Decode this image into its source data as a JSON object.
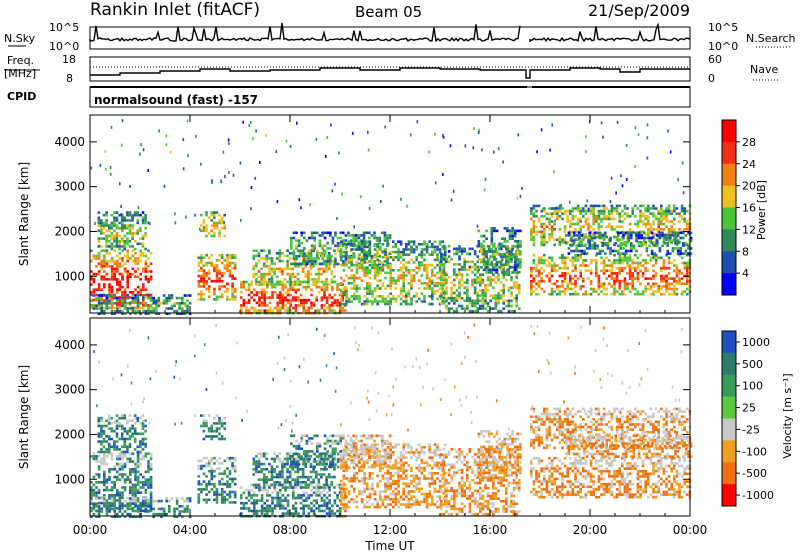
{
  "header": {
    "station": "Rankin Inlet (fitACF)",
    "beam": "Beam 05",
    "date": "21/Sep/2009"
  },
  "strips": {
    "nsky": {
      "label": "N.Sky",
      "ticks": [
        "10^5",
        "10^0"
      ]
    },
    "nsearch": {
      "label": "N.Search"
    },
    "freq": {
      "label_top": "Freq.",
      "label_bottom": "[MHz]",
      "ticks": [
        "18",
        "8"
      ]
    },
    "nave": {
      "label": "Nave",
      "ticks": [
        "60",
        "0"
      ]
    },
    "cpid": {
      "label": "CPID",
      "value": "normalsound (fast) -157"
    }
  },
  "chart_data": [
    {
      "type": "heatmap",
      "quantity": "power",
      "ylabel": "Slant Range [km]",
      "ylim": [
        180,
        4600
      ],
      "yticks": [
        "1000",
        "2000",
        "3000",
        "4000"
      ],
      "colorbar_label": "Power [dB]",
      "colorbar_ticks": [
        "4",
        "8",
        "12",
        "16",
        "20",
        "24",
        "28"
      ],
      "colorscale": [
        "#0000ff",
        "#1f4fae",
        "#2f8a5a",
        "#4cc43a",
        "#f0c020",
        "#f08010",
        "#f03010",
        "#ff0000"
      ]
    },
    {
      "type": "heatmap",
      "quantity": "velocity",
      "ylabel": "Slant Range [km]",
      "ylim": [
        180,
        4600
      ],
      "yticks": [
        "1000",
        "2000",
        "3000",
        "4000"
      ],
      "colorbar_label": "Velocity [m s⁻¹]",
      "colorbar_ticks": [
        "1000",
        "500",
        "100",
        "25",
        "-25",
        "-100",
        "-500",
        "-1000"
      ],
      "colorscale": [
        "#2050c0",
        "#2a7b6a",
        "#3a9a5a",
        "#5ac840",
        "#c8c8c8",
        "#f0a020",
        "#f07010",
        "#ff0000"
      ]
    }
  ],
  "xaxis": {
    "label": "Time UT",
    "ticks": [
      "00:00",
      "04:00",
      "08:00",
      "12:00",
      "16:00",
      "20:00",
      "00:00"
    ]
  }
}
